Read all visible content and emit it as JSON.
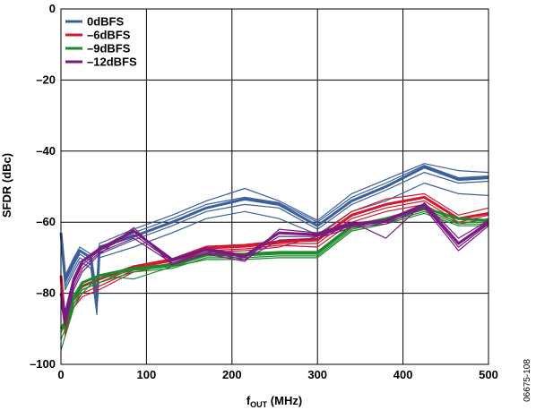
{
  "figure_id": "06675-108",
  "chart_data": {
    "type": "line",
    "title": "",
    "xlabel_main": "f",
    "xlabel_sub": "OUT",
    "xlabel_unit": " (MHz)",
    "ylabel": "SFDR (dBc)",
    "xlim": [
      0,
      500
    ],
    "ylim": [
      -100,
      0
    ],
    "x_ticks": [
      0,
      100,
      200,
      300,
      400,
      500
    ],
    "y_ticks": [
      0,
      -20,
      -40,
      -60,
      -80,
      -100
    ],
    "x_tick_labels": [
      "0",
      "100",
      "200",
      "300",
      "400",
      "500"
    ],
    "y_tick_labels": [
      "0",
      "–20",
      "–40",
      "–60",
      "–80",
      "–100"
    ],
    "grid": true,
    "legend_position": "top-left",
    "series": [
      {
        "name": "0dBFS",
        "color": "#3b5f9a",
        "x": [
          0,
          5,
          15,
          22,
          35,
          42,
          45,
          85,
          130,
          170,
          215,
          255,
          300,
          340,
          380,
          425,
          465,
          500
        ],
        "traces": [
          [
            -63,
            -76,
            -71,
            -68,
            -70,
            -82,
            -67,
            -64,
            -60,
            -56,
            -53.5,
            -55,
            -61,
            -54,
            -50,
            -44.5,
            -48,
            -47.5
          ],
          [
            -64,
            -77,
            -72,
            -69,
            -71,
            -83,
            -68,
            -63,
            -59,
            -55,
            -53,
            -54.5,
            -60,
            -53,
            -49,
            -44,
            -47.5,
            -47
          ],
          [
            -65,
            -78,
            -73,
            -70,
            -72,
            -84,
            -69,
            -65,
            -61,
            -57,
            -55,
            -56,
            -62,
            -55,
            -51,
            -46,
            -49,
            -48.5
          ],
          [
            -63,
            -75,
            -70,
            -67,
            -69,
            -80,
            -66,
            -62,
            -58,
            -54,
            -50.5,
            -54,
            -59.5,
            -52,
            -48,
            -43.5,
            -45.5,
            -46
          ],
          [
            -66,
            -79,
            -74,
            -71,
            -73,
            -86,
            -70,
            -67,
            -63,
            -59,
            -57,
            -59,
            -63.5,
            -57,
            -54,
            -49,
            -52,
            -52.5
          ]
        ]
      },
      {
        "name": "–6dBFS",
        "color": "#d1182f",
        "x": [
          0,
          5,
          15,
          25,
          45,
          85,
          130,
          170,
          215,
          255,
          300,
          340,
          380,
          425,
          465,
          500
        ],
        "traces": [
          [
            -75,
            -89,
            -81,
            -78,
            -76,
            -72.5,
            -70.5,
            -67,
            -66.5,
            -65.5,
            -65,
            -58,
            -55,
            -53,
            -59,
            -57.5
          ],
          [
            -77,
            -90,
            -82,
            -79,
            -77,
            -73,
            -71,
            -67.5,
            -67,
            -66,
            -66,
            -59,
            -56,
            -54,
            -60,
            -58
          ],
          [
            -79,
            -91,
            -83,
            -80,
            -78,
            -73.5,
            -71.5,
            -68,
            -67.5,
            -66.5,
            -67,
            -60,
            -57,
            -55,
            -60.5,
            -59
          ],
          [
            -81,
            -92,
            -84,
            -81,
            -79,
            -74,
            -72,
            -68.5,
            -68,
            -67,
            -64,
            -57,
            -53.5,
            -52,
            -58,
            -56
          ]
        ]
      },
      {
        "name": "–9dBFS",
        "color": "#1b8a2b",
        "x": [
          0,
          5,
          15,
          25,
          45,
          85,
          130,
          170,
          215,
          255,
          300,
          340,
          380,
          425,
          465,
          500
        ],
        "traces": [
          [
            -90,
            -88,
            -81,
            -77,
            -75,
            -73,
            -72,
            -69,
            -69,
            -68.5,
            -68.5,
            -61,
            -59,
            -56,
            -59,
            -59.5
          ],
          [
            -91,
            -89,
            -82,
            -78,
            -76,
            -73.5,
            -72.5,
            -69.5,
            -69.5,
            -69,
            -69,
            -61.5,
            -59.5,
            -56.5,
            -60,
            -60
          ],
          [
            -93,
            -90,
            -83,
            -79,
            -77,
            -74,
            -73,
            -70,
            -70,
            -69.5,
            -69.5,
            -62,
            -60,
            -57,
            -60.5,
            -60.5
          ],
          [
            -96,
            -92,
            -84,
            -80,
            -75,
            -76,
            -72.5,
            -70.5,
            -70.5,
            -70,
            -70,
            -62.5,
            -60.5,
            -57.5,
            -61,
            -61
          ]
        ]
      },
      {
        "name": "–12dBFS",
        "color": "#7a1a7f",
        "x": [
          0,
          5,
          15,
          25,
          45,
          85,
          130,
          170,
          215,
          255,
          300,
          340,
          380,
          425,
          465,
          500
        ],
        "traces": [
          [
            -80,
            -86,
            -76,
            -71,
            -67.5,
            -62.5,
            -70.5,
            -67.5,
            -69.5,
            -63,
            -63.5,
            -60.5,
            -59.5,
            -55,
            -66,
            -60
          ],
          [
            -81,
            -87,
            -77,
            -72,
            -68,
            -63.5,
            -71,
            -68,
            -70,
            -64,
            -64,
            -61,
            -60,
            -55.5,
            -67,
            -60.5
          ],
          [
            -82,
            -88,
            -78,
            -73,
            -68.5,
            -64.5,
            -71.5,
            -68.5,
            -70.5,
            -65,
            -64.5,
            -61.5,
            -60.5,
            -56,
            -68,
            -61
          ],
          [
            -83,
            -89,
            -79,
            -74,
            -69,
            -61.5,
            -72,
            -69,
            -71,
            -62,
            -63,
            -60,
            -64.5,
            -54.5,
            -64.5,
            -59.5
          ]
        ]
      }
    ]
  }
}
